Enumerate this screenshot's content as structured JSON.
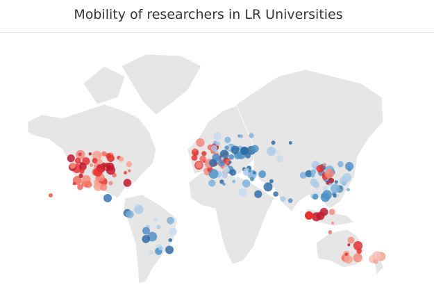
{
  "title": "Mobility of researchers in LR Universities"
}
